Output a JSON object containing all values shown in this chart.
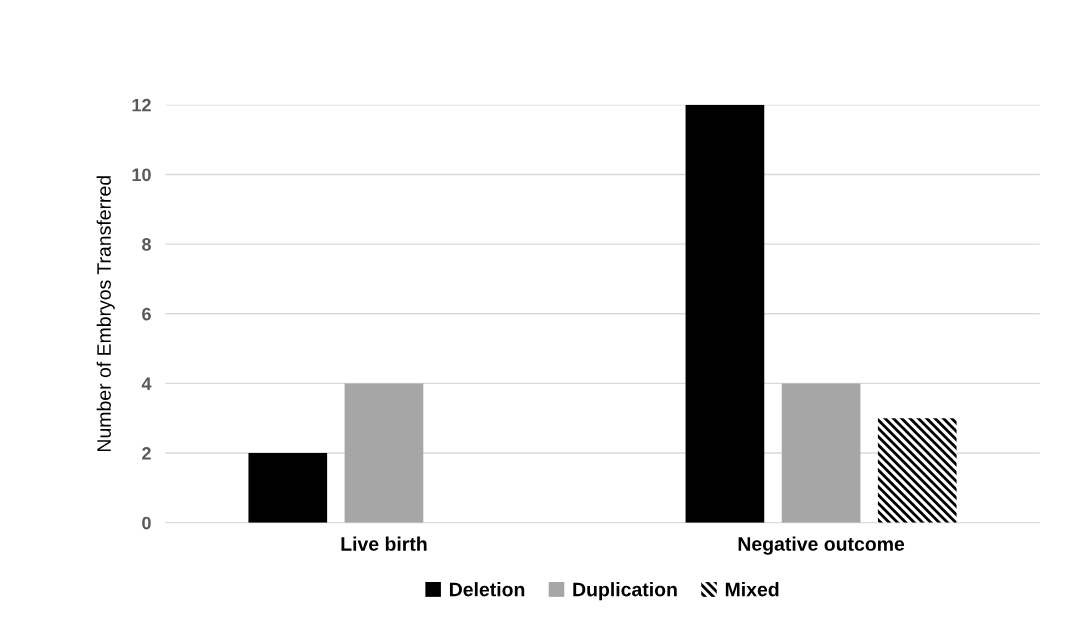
{
  "chart_data": {
    "type": "bar",
    "ylabel": "Number of Embryos Transferred",
    "categories": [
      "Live birth",
      "Negative outcome"
    ],
    "series": [
      {
        "name": "Deletion",
        "color": "#000000",
        "values": [
          2,
          12
        ]
      },
      {
        "name": "Duplication",
        "color": "#a6a6a6",
        "values": [
          4,
          4
        ]
      },
      {
        "name": "Mixed",
        "color": "#000000",
        "values": [
          null,
          3
        ]
      }
    ],
    "ylim": [
      0,
      12
    ],
    "yticks": [
      0,
      2,
      4,
      6,
      8,
      10,
      12
    ],
    "grid": "y",
    "legend": "bottom"
  }
}
